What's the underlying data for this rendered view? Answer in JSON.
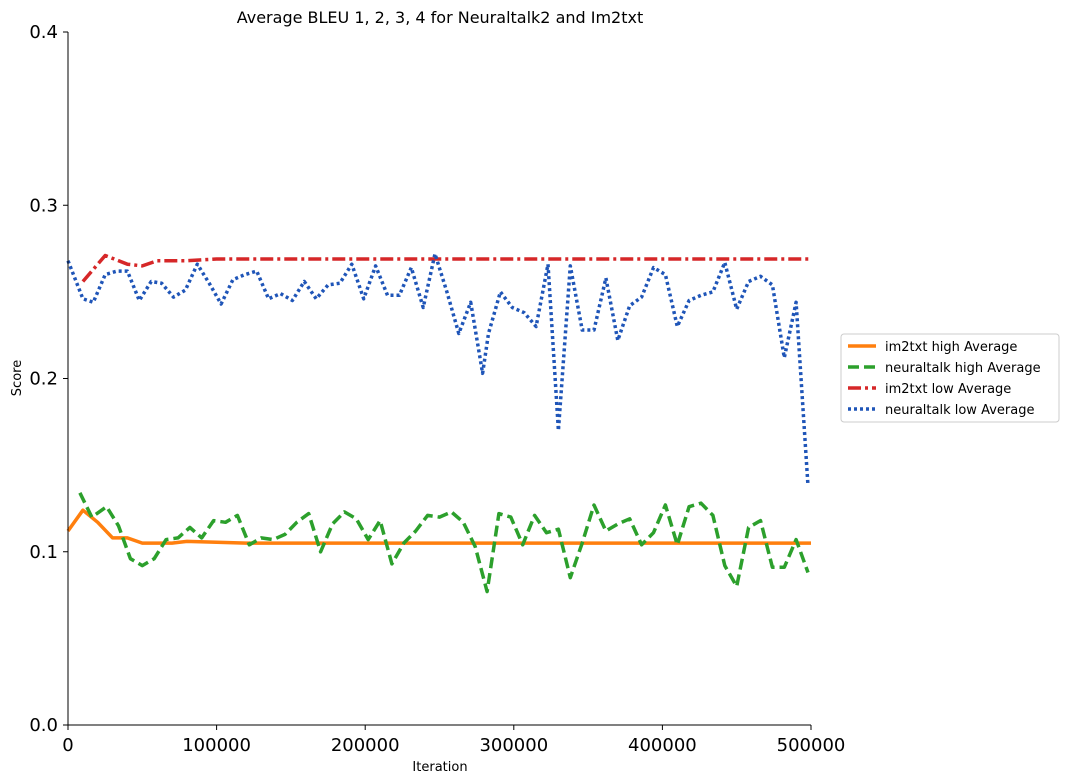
{
  "chart_data": {
    "type": "line",
    "title": "Average BLEU 1, 2, 3, 4 for Neuraltalk2 and Im2txt",
    "xlabel": "Iteration",
    "ylabel": "Score",
    "xlim": [
      0,
      500000
    ],
    "ylim": [
      0.0,
      0.4
    ],
    "xticks": [
      0,
      100000,
      200000,
      300000,
      400000,
      500000
    ],
    "xtick_labels": [
      "0",
      "100000",
      "200000",
      "300000",
      "400000",
      "500000"
    ],
    "yticks": [
      0.0,
      0.1,
      0.2,
      0.3,
      0.4
    ],
    "ytick_labels": [
      "0.0",
      "0.1",
      "0.2",
      "0.3",
      "0.4"
    ],
    "grid": false,
    "legend_position": "right",
    "series": [
      {
        "name": "im2txt high Average",
        "color": "#ff7f0e",
        "style": "solid",
        "x": [
          0,
          10000,
          20000,
          30000,
          40000,
          50000,
          60000,
          70000,
          80000,
          100000,
          120000,
          150000,
          200000,
          300000,
          400000,
          500000
        ],
        "y": [
          0.112,
          0.124,
          0.117,
          0.108,
          0.108,
          0.105,
          0.105,
          0.105,
          0.106,
          0.1055,
          0.105,
          0.105,
          0.105,
          0.105,
          0.105,
          0.105
        ]
      },
      {
        "name": "neuraltalk high Average",
        "color": "#2ca02c",
        "style": "dashed",
        "x": [
          8000,
          16000,
          26000,
          34000,
          42000,
          50000,
          58000,
          66000,
          74000,
          82000,
          90000,
          98000,
          106000,
          114000,
          122000,
          130000,
          138000,
          146000,
          154000,
          162000,
          170000,
          178000,
          186000,
          194000,
          202000,
          210000,
          218000,
          226000,
          234000,
          242000,
          250000,
          258000,
          266000,
          274000,
          282000,
          290000,
          298000,
          306000,
          314000,
          322000,
          330000,
          338000,
          346000,
          354000,
          362000,
          370000,
          378000,
          386000,
          394000,
          402000,
          410000,
          418000,
          426000,
          434000,
          442000,
          450000,
          458000,
          466000,
          474000,
          482000,
          490000,
          498000
        ],
        "y": [
          0.134,
          0.12,
          0.126,
          0.115,
          0.096,
          0.092,
          0.096,
          0.107,
          0.108,
          0.114,
          0.108,
          0.118,
          0.117,
          0.121,
          0.104,
          0.108,
          0.107,
          0.11,
          0.117,
          0.122,
          0.1,
          0.116,
          0.123,
          0.119,
          0.107,
          0.118,
          0.093,
          0.105,
          0.112,
          0.121,
          0.12,
          0.123,
          0.117,
          0.103,
          0.077,
          0.122,
          0.12,
          0.104,
          0.121,
          0.111,
          0.113,
          0.085,
          0.105,
          0.127,
          0.112,
          0.116,
          0.119,
          0.104,
          0.111,
          0.127,
          0.104,
          0.126,
          0.128,
          0.121,
          0.092,
          0.08,
          0.114,
          0.118,
          0.091,
          0.091,
          0.107,
          0.088
        ]
      },
      {
        "name": "im2txt low Average",
        "color": "#d62728",
        "style": "dashdot",
        "x": [
          10000,
          25000,
          40000,
          50000,
          60000,
          80000,
          100000,
          150000,
          200000,
          300000,
          400000,
          500000
        ],
        "y": [
          0.256,
          0.271,
          0.266,
          0.265,
          0.268,
          0.268,
          0.269,
          0.269,
          0.269,
          0.269,
          0.269,
          0.269
        ]
      },
      {
        "name": "neuraltalk low Average",
        "color": "#1f55b8",
        "style": "dotted",
        "x": [
          0,
          10000,
          17000,
          25000,
          33000,
          40000,
          48000,
          56000,
          63000,
          71000,
          79000,
          87000,
          95000,
          103000,
          111000,
          119000,
          127000,
          135000,
          143000,
          151000,
          159000,
          167000,
          175000,
          183000,
          191000,
          199000,
          207000,
          215000,
          223000,
          231000,
          239000,
          247000,
          255000,
          263000,
          271000,
          279000,
          283000,
          291000,
          299000,
          307000,
          315000,
          323000,
          330000,
          338000,
          346000,
          354000,
          362000,
          370000,
          378000,
          386000,
          394000,
          402000,
          410000,
          418000,
          426000,
          434000,
          442000,
          450000,
          458000,
          466000,
          474000,
          482000,
          490000,
          498000
        ],
        "y": [
          0.268,
          0.246,
          0.244,
          0.26,
          0.262,
          0.262,
          0.245,
          0.256,
          0.255,
          0.247,
          0.251,
          0.266,
          0.255,
          0.243,
          0.257,
          0.26,
          0.262,
          0.246,
          0.249,
          0.245,
          0.256,
          0.246,
          0.254,
          0.255,
          0.266,
          0.246,
          0.265,
          0.248,
          0.248,
          0.264,
          0.241,
          0.272,
          0.25,
          0.226,
          0.244,
          0.203,
          0.226,
          0.25,
          0.241,
          0.238,
          0.23,
          0.266,
          0.17,
          0.265,
          0.228,
          0.228,
          0.258,
          0.222,
          0.242,
          0.247,
          0.264,
          0.26,
          0.23,
          0.245,
          0.248,
          0.25,
          0.267,
          0.24,
          0.256,
          0.259,
          0.254,
          0.212,
          0.244,
          0.138
        ]
      }
    ]
  }
}
